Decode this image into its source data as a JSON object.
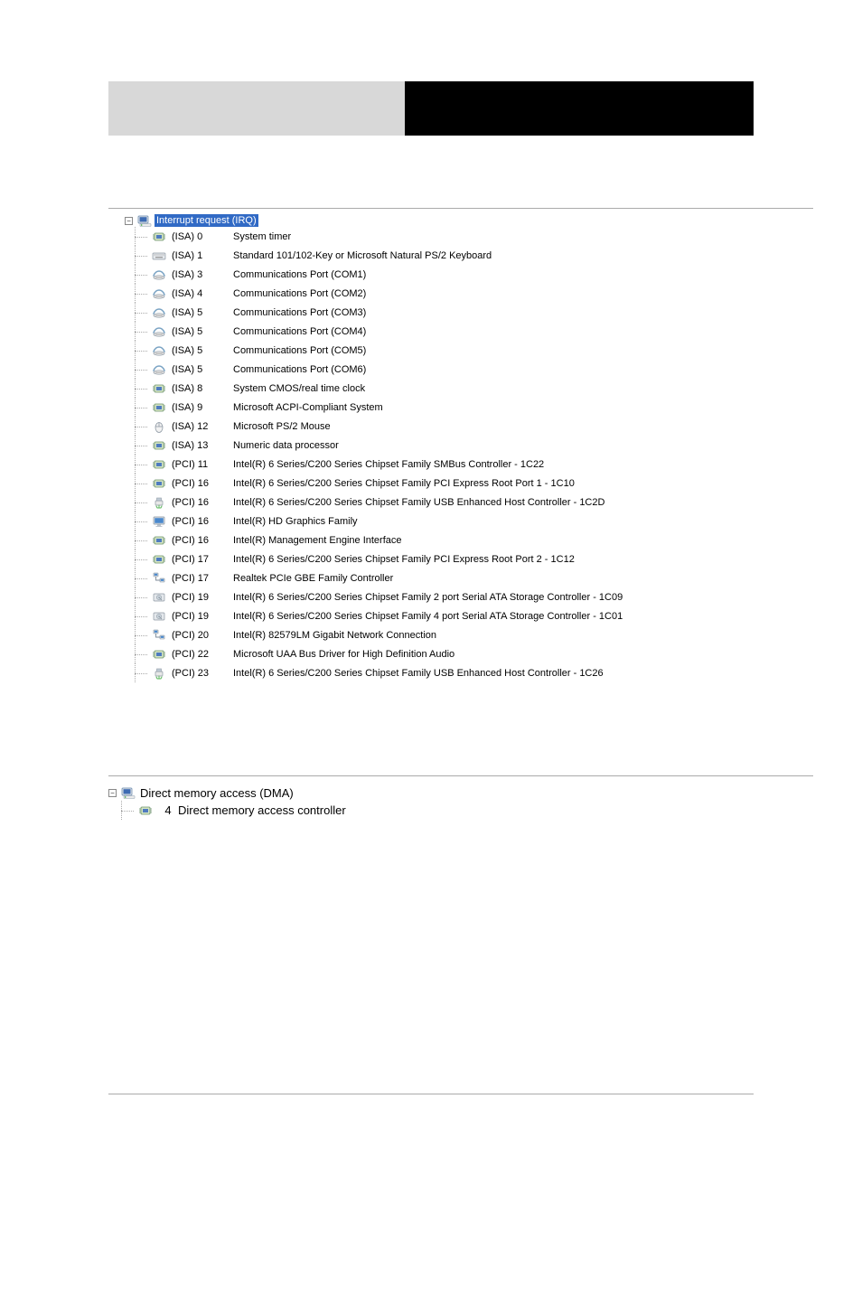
{
  "irq": {
    "root_label": "Interrupt request (IRQ)",
    "items": [
      {
        "icon": "chip",
        "num": "(ISA)  0",
        "name": "System timer"
      },
      {
        "icon": "keyboard",
        "num": "(ISA)  1",
        "name": "Standard 101/102-Key or Microsoft Natural PS/2 Keyboard"
      },
      {
        "icon": "port",
        "num": "(ISA)  3",
        "name": "Communications Port (COM1)"
      },
      {
        "icon": "port",
        "num": "(ISA)  4",
        "name": "Communications Port (COM2)"
      },
      {
        "icon": "port",
        "num": "(ISA)  5",
        "name": "Communications Port (COM3)"
      },
      {
        "icon": "port",
        "num": "(ISA)  5",
        "name": "Communications Port (COM4)"
      },
      {
        "icon": "port",
        "num": "(ISA)  5",
        "name": "Communications Port (COM5)"
      },
      {
        "icon": "port",
        "num": "(ISA)  5",
        "name": "Communications Port (COM6)"
      },
      {
        "icon": "chip",
        "num": "(ISA)  8",
        "name": "System CMOS/real time clock"
      },
      {
        "icon": "chip",
        "num": "(ISA)  9",
        "name": "Microsoft ACPI-Compliant System"
      },
      {
        "icon": "mouse",
        "num": "(ISA) 12",
        "name": "Microsoft PS/2 Mouse"
      },
      {
        "icon": "chip",
        "num": "(ISA) 13",
        "name": "Numeric data processor"
      },
      {
        "icon": "chip",
        "num": "(PCI) 11",
        "name": "Intel(R) 6 Series/C200 Series Chipset Family SMBus Controller - 1C22"
      },
      {
        "icon": "chip",
        "num": "(PCI) 16",
        "name": "Intel(R) 6 Series/C200 Series Chipset Family PCI Express Root Port 1 - 1C10"
      },
      {
        "icon": "usb",
        "num": "(PCI) 16",
        "name": "Intel(R) 6 Series/C200 Series Chipset Family USB Enhanced Host Controller - 1C2D"
      },
      {
        "icon": "display",
        "num": "(PCI) 16",
        "name": "Intel(R) HD Graphics Family"
      },
      {
        "icon": "chip",
        "num": "(PCI) 16",
        "name": "Intel(R) Management Engine Interface"
      },
      {
        "icon": "chip",
        "num": "(PCI) 17",
        "name": "Intel(R) 6 Series/C200 Series Chipset Family PCI Express Root Port 2 - 1C12"
      },
      {
        "icon": "network",
        "num": "(PCI) 17",
        "name": "Realtek PCIe GBE Family Controller"
      },
      {
        "icon": "storage",
        "num": "(PCI) 19",
        "name": "Intel(R) 6 Series/C200 Series Chipset Family 2 port Serial ATA Storage Controller - 1C09"
      },
      {
        "icon": "storage",
        "num": "(PCI) 19",
        "name": "Intel(R) 6 Series/C200 Series Chipset Family 4 port Serial ATA Storage Controller - 1C01"
      },
      {
        "icon": "network",
        "num": "(PCI) 20",
        "name": "Intel(R) 82579LM Gigabit Network Connection"
      },
      {
        "icon": "chip",
        "num": "(PCI) 22",
        "name": "Microsoft UAA Bus Driver for High Definition Audio"
      },
      {
        "icon": "usb",
        "num": "(PCI) 23",
        "name": "Intel(R) 6 Series/C200 Series Chipset Family USB Enhanced Host Controller - 1C26"
      }
    ]
  },
  "dma": {
    "root_label": "Direct memory access (DMA)",
    "items": [
      {
        "icon": "chip",
        "num": "4",
        "name": "Direct memory access controller"
      }
    ]
  },
  "colors": {
    "selection_bg": "#316ac5",
    "selection_fg": "#ffffff",
    "line_color": "#aaaaaa"
  }
}
